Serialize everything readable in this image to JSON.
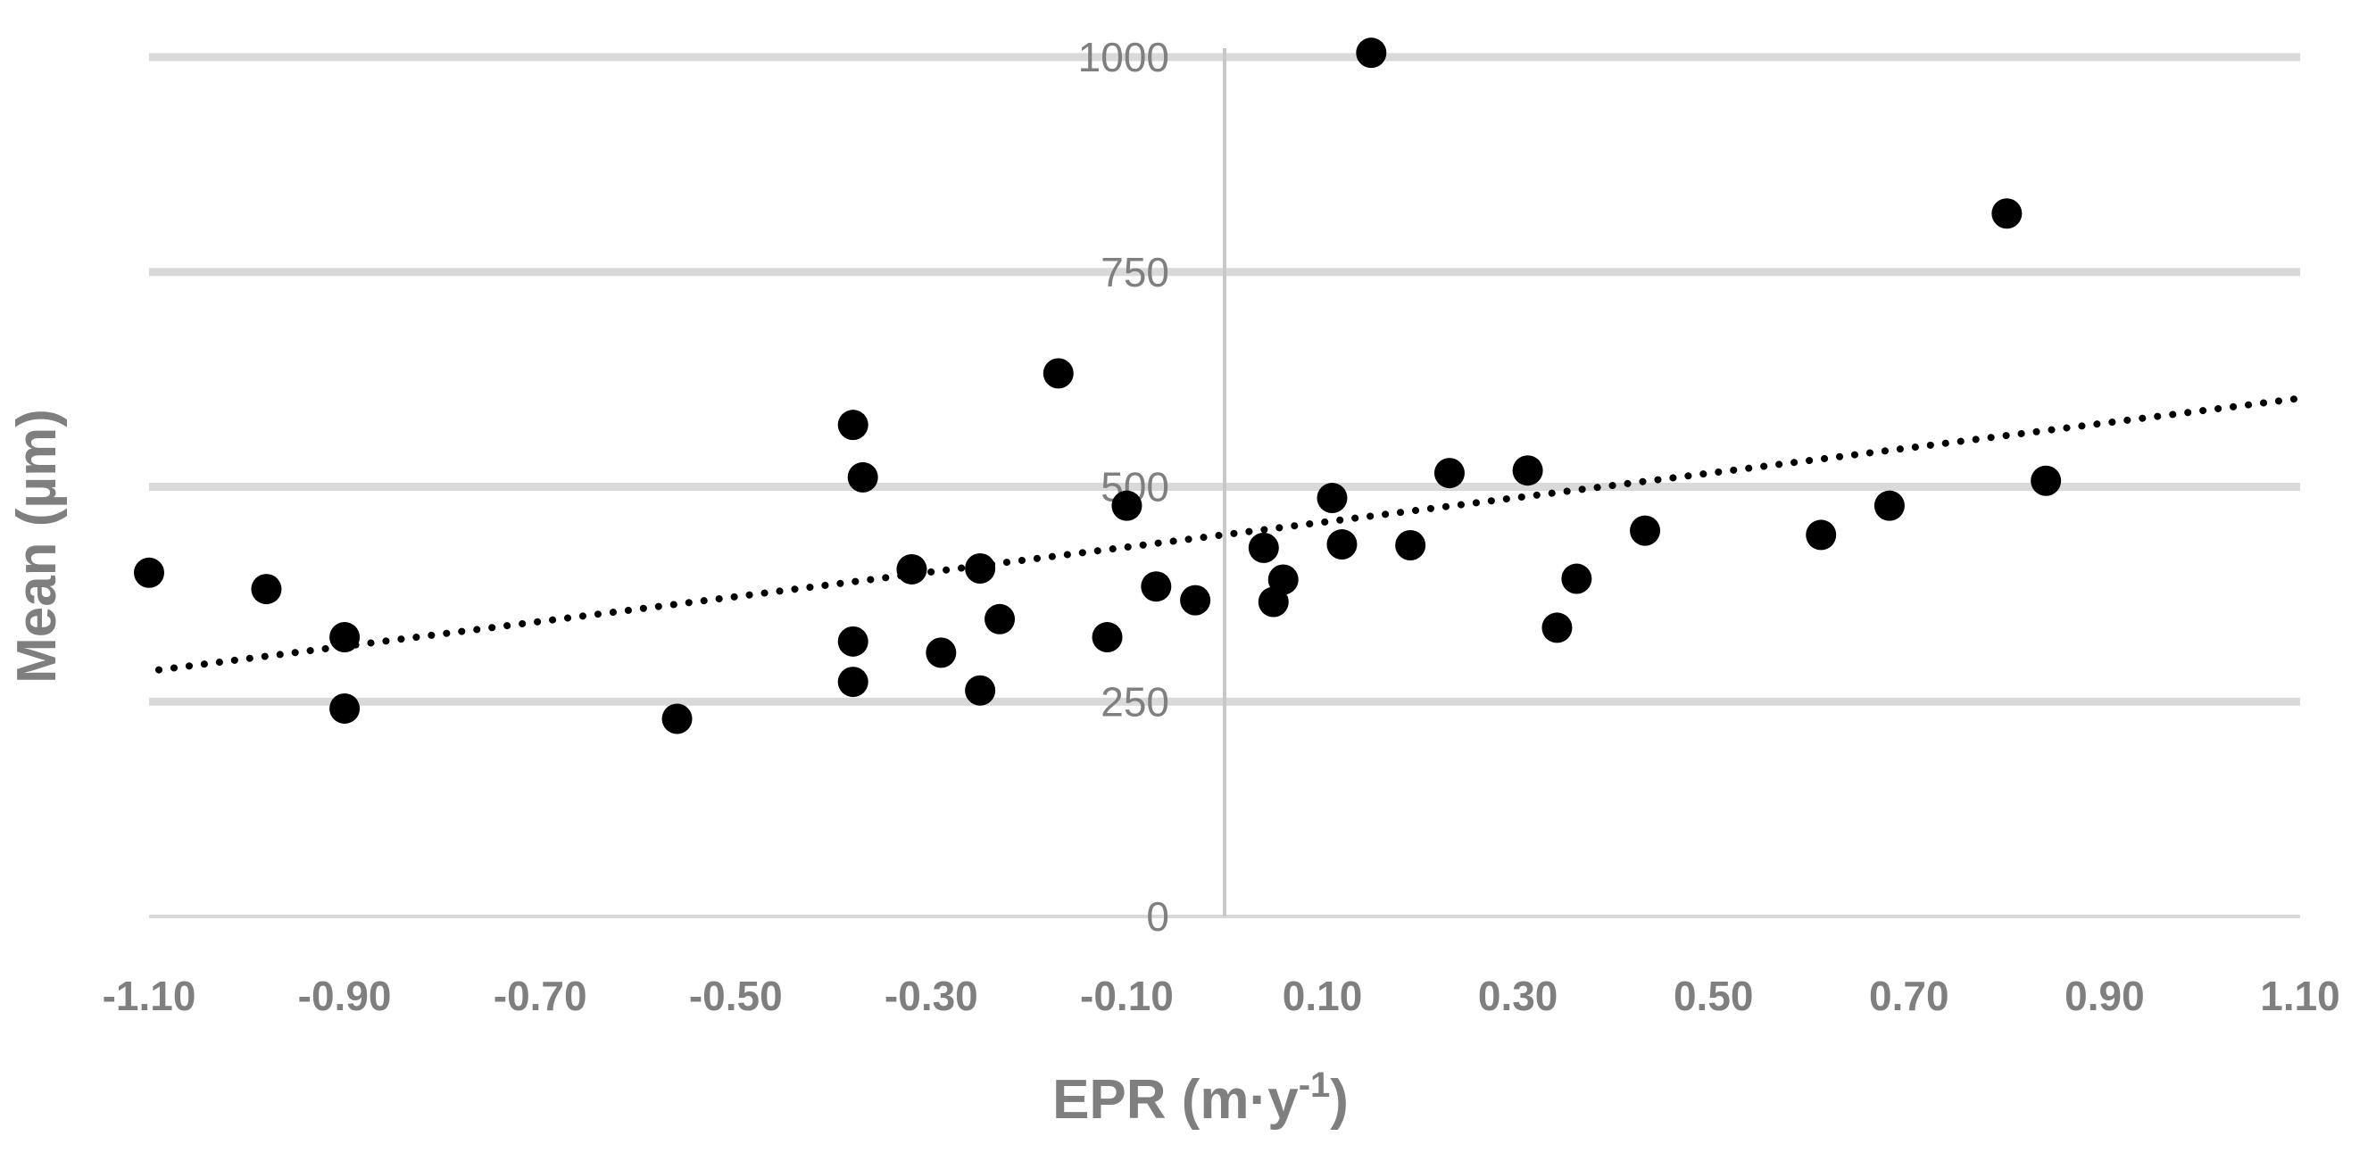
{
  "chart_data": {
    "type": "scatter",
    "xlabel_main": "EPR (m·y",
    "xlabel_sup": "-1",
    "xlabel_end": ")",
    "ylabel": "Mean (µm)",
    "xlim": [
      -1.1,
      1.1
    ],
    "ylim": [
      0,
      1000
    ],
    "x_ticks": [
      "-1.10",
      "-0.90",
      "-0.70",
      "-0.50",
      "-0.30",
      "-0.10",
      "0.10",
      "0.30",
      "0.50",
      "0.70",
      "0.90",
      "1.10"
    ],
    "x_tick_values": [
      -1.1,
      -0.9,
      -0.7,
      -0.5,
      -0.3,
      -0.1,
      0.1,
      0.3,
      0.5,
      0.7,
      0.9,
      1.1
    ],
    "y_ticks": [
      "0",
      "250",
      "500",
      "750",
      "1000"
    ],
    "y_tick_values": [
      0,
      250,
      500,
      750,
      1000
    ],
    "gridlines": "horizontal",
    "point_color": "#000000",
    "grid_color": "#d9d9d9",
    "label_color": "#7f7f7f",
    "trendline": {
      "style": "dotted",
      "x": [
        -1.09,
        1.1
      ],
      "y": [
        287,
        603
      ]
    },
    "points": [
      {
        "x": -1.1,
        "y": 400
      },
      {
        "x": -0.98,
        "y": 381
      },
      {
        "x": -0.9,
        "y": 325
      },
      {
        "x": -0.9,
        "y": 242
      },
      {
        "x": -0.56,
        "y": 230
      },
      {
        "x": -0.38,
        "y": 572
      },
      {
        "x": -0.37,
        "y": 511
      },
      {
        "x": -0.38,
        "y": 320
      },
      {
        "x": -0.38,
        "y": 273
      },
      {
        "x": -0.32,
        "y": 404
      },
      {
        "x": -0.29,
        "y": 307
      },
      {
        "x": -0.25,
        "y": 405
      },
      {
        "x": -0.25,
        "y": 263
      },
      {
        "x": -0.23,
        "y": 346
      },
      {
        "x": -0.17,
        "y": 632
      },
      {
        "x": -0.12,
        "y": 325
      },
      {
        "x": -0.1,
        "y": 478
      },
      {
        "x": -0.07,
        "y": 384
      },
      {
        "x": -0.03,
        "y": 368
      },
      {
        "x": 0.04,
        "y": 429
      },
      {
        "x": 0.05,
        "y": 366
      },
      {
        "x": 0.06,
        "y": 392
      },
      {
        "x": 0.11,
        "y": 487
      },
      {
        "x": 0.12,
        "y": 433
      },
      {
        "x": 0.15,
        "y": 1005
      },
      {
        "x": 0.19,
        "y": 432
      },
      {
        "x": 0.23,
        "y": 516
      },
      {
        "x": 0.31,
        "y": 519
      },
      {
        "x": 0.34,
        "y": 336
      },
      {
        "x": 0.36,
        "y": 393
      },
      {
        "x": 0.43,
        "y": 449
      },
      {
        "x": 0.61,
        "y": 444
      },
      {
        "x": 0.68,
        "y": 478
      },
      {
        "x": 0.8,
        "y": 818
      },
      {
        "x": 0.84,
        "y": 507
      }
    ]
  }
}
